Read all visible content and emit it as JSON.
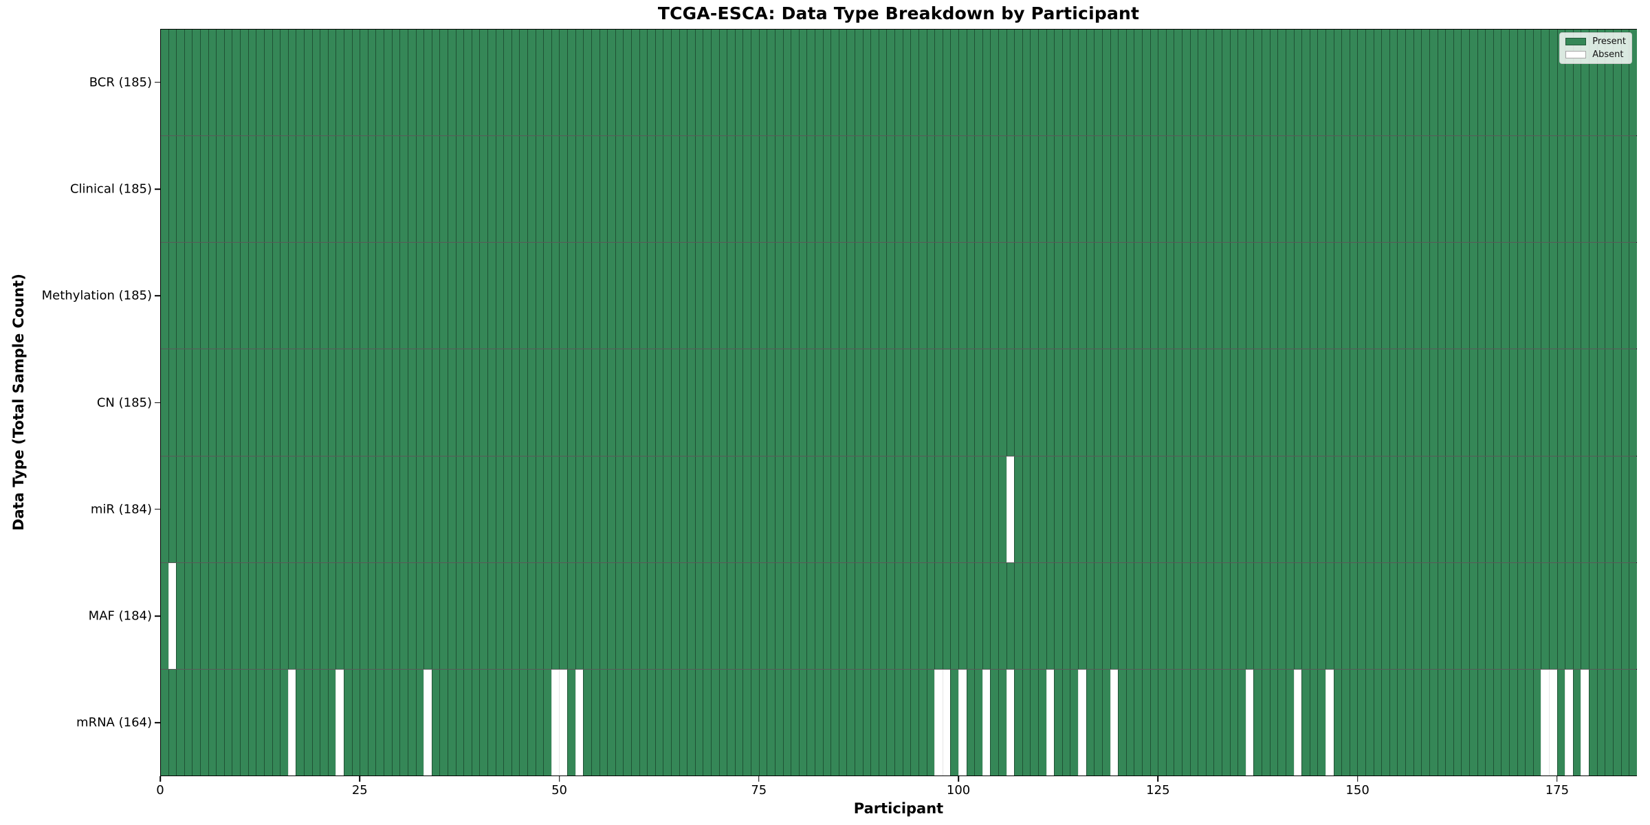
{
  "figure": {
    "title": "TCGA-ESCA: Data Type Breakdown by Participant"
  },
  "axes": {
    "xlabel": "Participant",
    "ylabel": "Data Type (Total Sample Count)",
    "x_ticks": [
      0,
      25,
      50,
      75,
      100,
      125,
      150,
      175
    ]
  },
  "legend": {
    "items": [
      {
        "label": "Present",
        "color_key": "present"
      },
      {
        "label": "Absent",
        "color_key": "absent"
      }
    ],
    "position": "upper right"
  },
  "colors": {
    "present": "#358757",
    "absent": "#ffffff",
    "cell_edge": "rgba(0,0,0,0.40)",
    "row_divider": "rgba(0,0,0,0.65)",
    "plot_border": "#000000"
  },
  "chart_data": {
    "type": "heatmap",
    "title": "TCGA-ESCA: Data Type Breakdown by Participant",
    "xlabel": "Participant",
    "ylabel": "Data Type (Total Sample Count)",
    "x_range": [
      0,
      185
    ],
    "x_ticks": [
      0,
      25,
      50,
      75,
      100,
      125,
      150,
      175
    ],
    "n_participants": 185,
    "cell_values": {
      "present": 1,
      "absent": 0
    },
    "legend_entries": [
      "Present",
      "Absent"
    ],
    "legend_position": "upper right",
    "grid": "cell-borders",
    "rows": [
      {
        "name": "BCR",
        "label": "BCR (185)",
        "present_count": 185,
        "absent_participants": []
      },
      {
        "name": "Clinical",
        "label": "Clinical (185)",
        "present_count": 185,
        "absent_participants": []
      },
      {
        "name": "Methylation",
        "label": "Methylation (185)",
        "present_count": 185,
        "absent_participants": []
      },
      {
        "name": "CN",
        "label": "CN (185)",
        "present_count": 185,
        "absent_participants": []
      },
      {
        "name": "miR",
        "label": "miR (184)",
        "present_count": 184,
        "absent_participants": [
          106
        ]
      },
      {
        "name": "MAF",
        "label": "MAF (184)",
        "present_count": 184,
        "absent_participants": [
          1
        ]
      },
      {
        "name": "mRNA",
        "label": "mRNA (164)",
        "present_count": 164,
        "absent_participants": [
          16,
          22,
          33,
          49,
          50,
          52,
          97,
          98,
          100,
          103,
          106,
          111,
          115,
          119,
          136,
          142,
          146,
          173,
          174,
          176,
          178
        ]
      }
    ]
  }
}
